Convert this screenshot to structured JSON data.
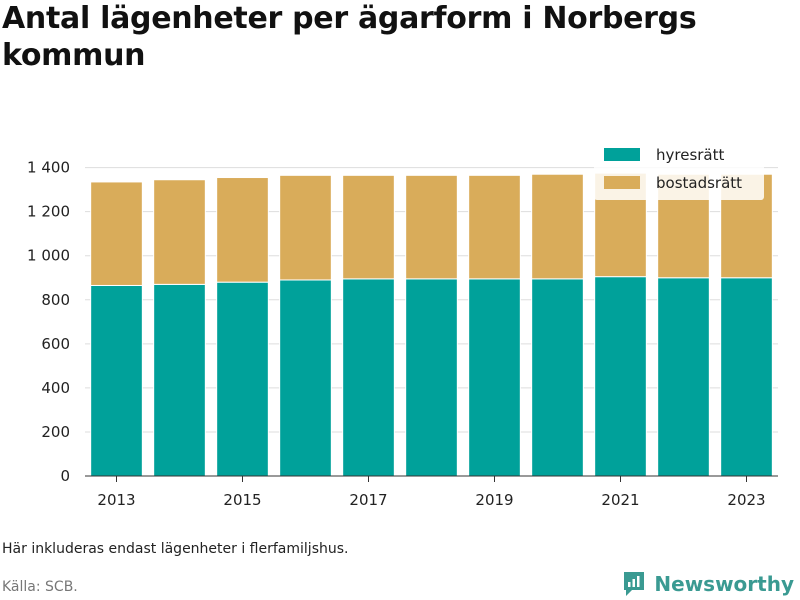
{
  "title": "Antal lägenheter per ägarform i Norbergs kommun",
  "note": "Här inkluderas endast lägenheter i flerfamiljshus.",
  "source": "Källa: SCB.",
  "brand": {
    "name": "Newsworthy",
    "icon": "newsworthy-logo-icon",
    "color": "#3a9a92"
  },
  "colors": {
    "hyresratt": "#00a19a",
    "bostadsratt": "#d9ac5a",
    "grid": "#dddddd",
    "axis": "#333333"
  },
  "chart_data": {
    "type": "bar",
    "stacked": true,
    "title": "Antal lägenheter per ägarform i Norbergs kommun",
    "xlabel": "",
    "ylabel": "",
    "x": [
      2013,
      2014,
      2015,
      2016,
      2017,
      2018,
      2019,
      2020,
      2021,
      2022,
      2023
    ],
    "x_tick_labels": [
      "2013",
      "2015",
      "2017",
      "2019",
      "2021",
      "2023"
    ],
    "y_tick_values": [
      0,
      200,
      400,
      600,
      800,
      1000,
      1200,
      1400
    ],
    "y_tick_labels": [
      "0",
      "200",
      "400",
      "600",
      "800",
      "1 000",
      "1 200",
      "1 400"
    ],
    "ylim": [
      0,
      1480
    ],
    "grid": true,
    "legend_position": "top-right",
    "series": [
      {
        "name": "hyresrätt",
        "color": "#00a19a",
        "values": [
          865,
          870,
          880,
          890,
          895,
          895,
          895,
          895,
          905,
          900,
          900
        ]
      },
      {
        "name": "bostadsrätt",
        "color": "#d9ac5a",
        "values": [
          470,
          475,
          475,
          475,
          470,
          470,
          470,
          475,
          470,
          470,
          470
        ]
      }
    ]
  }
}
